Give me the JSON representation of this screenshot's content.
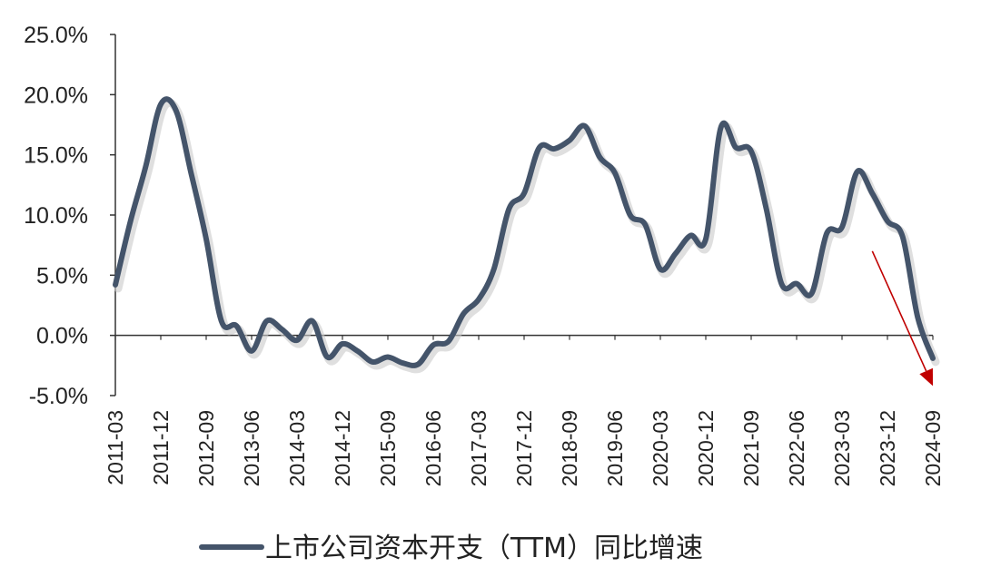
{
  "colors": {
    "series": "#44546A",
    "arrow": "#C00000",
    "axis": "#333333",
    "text": "#222222"
  },
  "chart_data": {
    "type": "line",
    "title": "",
    "xlabel": "",
    "ylabel": "",
    "ylim": [
      -5,
      25
    ],
    "y_ticks": [
      "25.0%",
      "20.0%",
      "15.0%",
      "10.0%",
      "5.0%",
      "0.0%",
      "-5.0%"
    ],
    "y_tick_values": [
      25,
      20,
      15,
      10,
      5,
      0,
      -5
    ],
    "x_ticks": [
      "2011-03",
      "2011-12",
      "2012-09",
      "2013-06",
      "2014-03",
      "2014-12",
      "2015-09",
      "2016-06",
      "2017-03",
      "2017-12",
      "2018-09",
      "2019-06",
      "2020-03",
      "2020-12",
      "2021-09",
      "2022-06",
      "2023-03",
      "2023-12",
      "2024-09"
    ],
    "grid": false,
    "legend_position": "bottom",
    "series": [
      {
        "name": "上市公司资本开支（TTM）同比增速",
        "x": [
          "2011-03",
          "2011-06",
          "2011-09",
          "2011-12",
          "2012-03",
          "2012-06",
          "2012-09",
          "2012-12",
          "2013-03",
          "2013-06",
          "2013-09",
          "2013-12",
          "2014-03",
          "2014-06",
          "2014-09",
          "2014-12",
          "2015-03",
          "2015-06",
          "2015-09",
          "2015-12",
          "2016-03",
          "2016-06",
          "2016-09",
          "2016-12",
          "2017-03",
          "2017-06",
          "2017-09",
          "2017-12",
          "2018-03",
          "2018-06",
          "2018-09",
          "2018-12",
          "2019-03",
          "2019-06",
          "2019-09",
          "2019-12",
          "2020-03",
          "2020-06",
          "2020-09",
          "2020-12",
          "2021-03",
          "2021-06",
          "2021-09",
          "2021-12",
          "2022-03",
          "2022-06",
          "2022-09",
          "2022-12",
          "2023-03",
          "2023-06",
          "2023-09",
          "2023-12",
          "2024-03",
          "2024-06",
          "2024-09"
        ],
        "values": [
          4.2,
          9.5,
          14.0,
          19.2,
          18.7,
          13.5,
          8.0,
          1.2,
          0.8,
          -1.3,
          1.2,
          0.5,
          -0.4,
          1.2,
          -1.8,
          -0.7,
          -1.3,
          -2.2,
          -1.8,
          -2.3,
          -2.4,
          -0.8,
          -0.5,
          1.8,
          3.0,
          5.5,
          10.5,
          11.8,
          15.6,
          15.5,
          16.2,
          17.4,
          14.8,
          13.5,
          10.0,
          9.2,
          5.5,
          6.8,
          8.3,
          8.0,
          17.3,
          15.6,
          15.3,
          10.5,
          4.3,
          4.3,
          3.5,
          8.5,
          9.0,
          13.6,
          11.8,
          9.5,
          8.2,
          1.5,
          -1.9
        ]
      }
    ],
    "annotations": [
      {
        "type": "arrow",
        "from": [
          "2023-09",
          7.0
        ],
        "to": [
          "2024-09",
          -4.2
        ],
        "color": "#C00000"
      }
    ]
  }
}
